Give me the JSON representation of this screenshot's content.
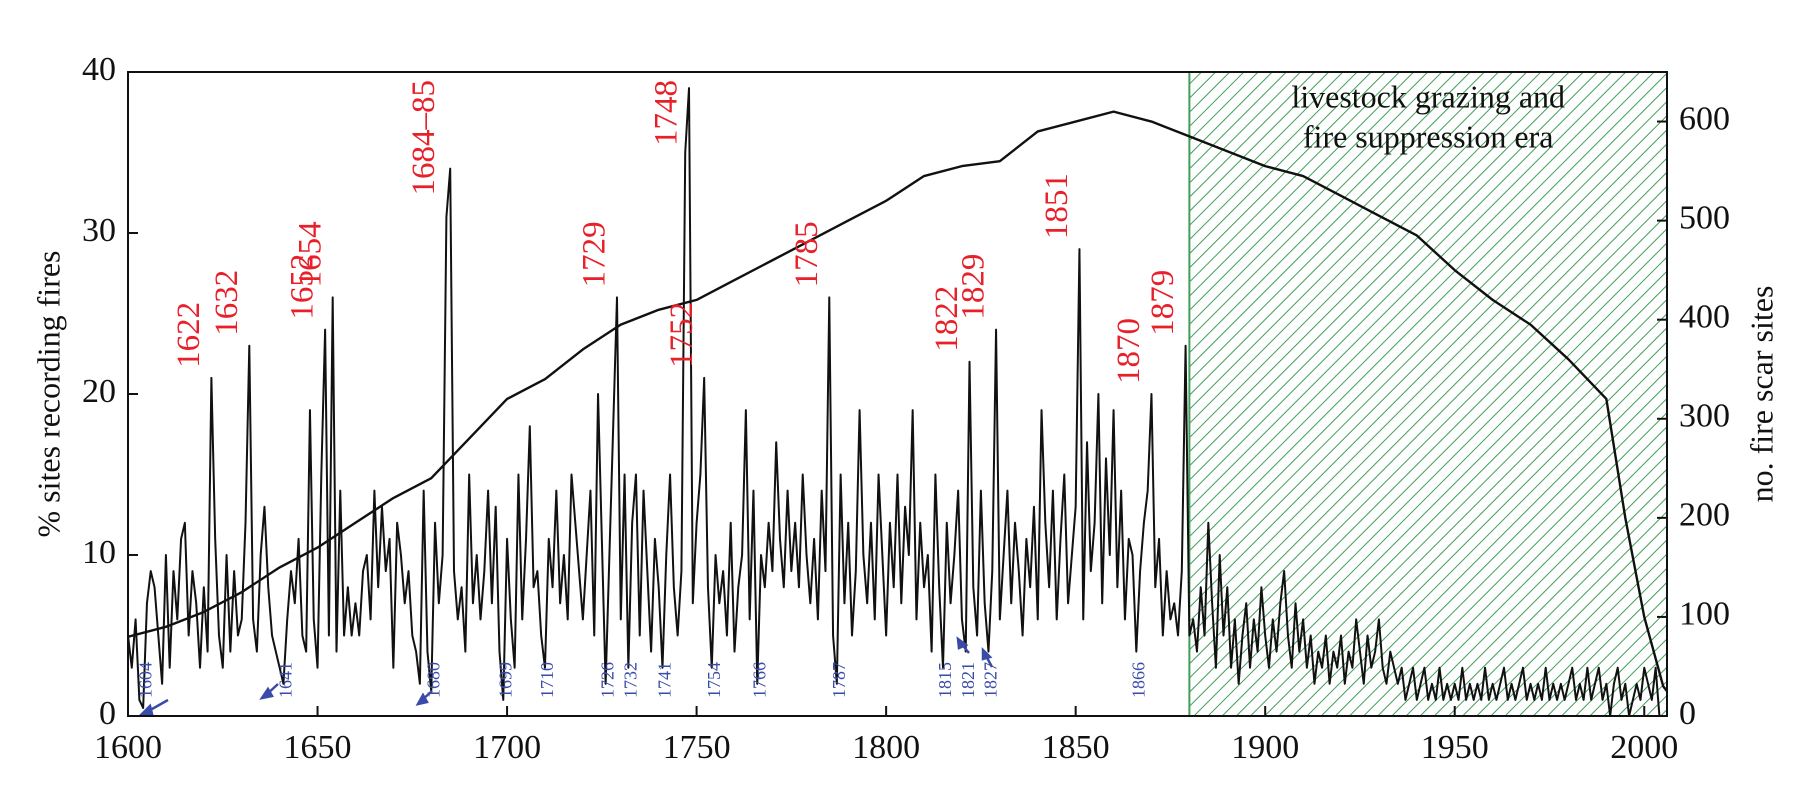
{
  "chart_data": {
    "type": "line",
    "y_label": "% sites recording fires",
    "y2_label": "no. fire scar sites",
    "xlim": [
      1600,
      2006
    ],
    "xticks": [
      1600,
      1650,
      1700,
      1750,
      1800,
      1850,
      1900,
      1950,
      2000
    ],
    "ylim": [
      0,
      40
    ],
    "yticks": [
      0,
      10,
      20,
      30,
      40
    ],
    "y2lim": [
      0,
      650
    ],
    "y2ticks": [
      0,
      100,
      200,
      300,
      400,
      500,
      600
    ],
    "shaded_region": {
      "start": 1880,
      "label_lines": [
        "livestock grazing and",
        "fire suppression era"
      ],
      "color": "#3f9f5a"
    },
    "fire_year_labels": [
      "1622",
      "1632",
      "1652",
      "1654",
      "1684–85",
      "1729",
      "1748",
      "1752",
      "1785",
      "1822",
      "1829",
      "1851",
      "1870",
      "1879"
    ],
    "minor_year_labels": [
      "1604",
      "1641",
      "1680",
      "1699",
      "1710",
      "1726",
      "1732",
      "1741",
      "1754",
      "1766",
      "1787",
      "1815",
      "1821",
      "1827",
      "1866"
    ],
    "series": [
      {
        "name": "% sites recording fires",
        "color": "#111111",
        "x": [
          1600,
          1601,
          1602,
          1603,
          1604,
          1605,
          1606,
          1607,
          1608,
          1609,
          1610,
          1611,
          1612,
          1613,
          1614,
          1615,
          1616,
          1617,
          1618,
          1619,
          1620,
          1621,
          1622,
          1623,
          1624,
          1625,
          1626,
          1627,
          1628,
          1629,
          1630,
          1631,
          1632,
          1633,
          1634,
          1635,
          1636,
          1637,
          1638,
          1639,
          1640,
          1641,
          1642,
          1643,
          1644,
          1645,
          1646,
          1647,
          1648,
          1649,
          1650,
          1651,
          1652,
          1653,
          1654,
          1655,
          1656,
          1657,
          1658,
          1659,
          1660,
          1661,
          1662,
          1663,
          1664,
          1665,
          1666,
          1667,
          1668,
          1669,
          1670,
          1671,
          1672,
          1673,
          1674,
          1675,
          1676,
          1677,
          1678,
          1679,
          1680,
          1681,
          1682,
          1683,
          1684,
          1685,
          1686,
          1687,
          1688,
          1689,
          1690,
          1691,
          1692,
          1693,
          1694,
          1695,
          1696,
          1697,
          1698,
          1699,
          1700,
          1701,
          1702,
          1703,
          1704,
          1705,
          1706,
          1707,
          1708,
          1709,
          1710,
          1711,
          1712,
          1713,
          1714,
          1715,
          1716,
          1717,
          1718,
          1719,
          1720,
          1721,
          1722,
          1723,
          1724,
          1725,
          1726,
          1727,
          1728,
          1729,
          1730,
          1731,
          1732,
          1733,
          1734,
          1735,
          1736,
          1737,
          1738,
          1739,
          1740,
          1741,
          1742,
          1743,
          1744,
          1745,
          1746,
          1747,
          1748,
          1749,
          1750,
          1751,
          1752,
          1753,
          1754,
          1755,
          1756,
          1757,
          1758,
          1759,
          1760,
          1761,
          1762,
          1763,
          1764,
          1765,
          1766,
          1767,
          1768,
          1769,
          1770,
          1771,
          1772,
          1773,
          1774,
          1775,
          1776,
          1777,
          1778,
          1779,
          1780,
          1781,
          1782,
          1783,
          1784,
          1785,
          1786,
          1787,
          1788,
          1789,
          1790,
          1791,
          1792,
          1793,
          1794,
          1795,
          1796,
          1797,
          1798,
          1799,
          1800,
          1801,
          1802,
          1803,
          1804,
          1805,
          1806,
          1807,
          1808,
          1809,
          1810,
          1811,
          1812,
          1813,
          1814,
          1815,
          1816,
          1817,
          1818,
          1819,
          1820,
          1821,
          1822,
          1823,
          1824,
          1825,
          1826,
          1827,
          1828,
          1829,
          1830,
          1831,
          1832,
          1833,
          1834,
          1835,
          1836,
          1837,
          1838,
          1839,
          1840,
          1841,
          1842,
          1843,
          1844,
          1845,
          1846,
          1847,
          1848,
          1849,
          1850,
          1851,
          1852,
          1853,
          1854,
          1855,
          1856,
          1857,
          1858,
          1859,
          1860,
          1861,
          1862,
          1863,
          1864,
          1865,
          1866,
          1867,
          1868,
          1869,
          1870,
          1871,
          1872,
          1873,
          1874,
          1875,
          1876,
          1877,
          1878,
          1879,
          1880,
          1881,
          1882,
          1883,
          1884,
          1885,
          1886,
          1887,
          1888,
          1889,
          1890,
          1891,
          1892,
          1893,
          1894,
          1895,
          1896,
          1897,
          1898,
          1899,
          1900,
          1901,
          1902,
          1903,
          1904,
          1905,
          1906,
          1907,
          1908,
          1909,
          1910,
          1911,
          1912,
          1913,
          1914,
          1915,
          1916,
          1917,
          1918,
          1919,
          1920,
          1921,
          1922,
          1923,
          1924,
          1925,
          1926,
          1927,
          1928,
          1929,
          1930,
          1931,
          1932,
          1933,
          1934,
          1935,
          1936,
          1937,
          1938,
          1939,
          1940,
          1941,
          1942,
          1943,
          1944,
          1945,
          1946,
          1947,
          1948,
          1949,
          1950,
          1951,
          1952,
          1953,
          1954,
          1955,
          1956,
          1957,
          1958,
          1959,
          1960,
          1961,
          1962,
          1963,
          1964,
          1965,
          1966,
          1967,
          1968,
          1969,
          1970,
          1971,
          1972,
          1973,
          1974,
          1975,
          1976,
          1977,
          1978,
          1979,
          1980,
          1981,
          1982,
          1983,
          1984,
          1985,
          1986,
          1987,
          1988,
          1989,
          1990,
          1991,
          1992,
          1993,
          1994,
          1995,
          1996,
          1997,
          1998,
          1999,
          2000,
          2001,
          2002,
          2003,
          2004
        ],
        "values": [
          5,
          3,
          6,
          1,
          0.5,
          7,
          9,
          8,
          5,
          2,
          10,
          3,
          9,
          6,
          11,
          12,
          5,
          9,
          7,
          3,
          8,
          4,
          21,
          11,
          5,
          3,
          10,
          4,
          9,
          5,
          6,
          12,
          23,
          6,
          4,
          10,
          13,
          8,
          5,
          4,
          3,
          2,
          6,
          9,
          7,
          11,
          5,
          4,
          19,
          6,
          3,
          15,
          24,
          5,
          26,
          4,
          14,
          5,
          8,
          5,
          7,
          5,
          9,
          10,
          6,
          14,
          8,
          13,
          9,
          11,
          3,
          12,
          10,
          7,
          9,
          5,
          4,
          2,
          14,
          4,
          1.5,
          12,
          7,
          10,
          31,
          34,
          9,
          6,
          8,
          4,
          15,
          7,
          10,
          6,
          9,
          14,
          7,
          13,
          4,
          1,
          11,
          6,
          3,
          15,
          6,
          11,
          18,
          8,
          9,
          5,
          3,
          11,
          8,
          14,
          7,
          10,
          6,
          15,
          12,
          9,
          6,
          10,
          14,
          5,
          20,
          11,
          2,
          10,
          18,
          26,
          6,
          15,
          3,
          12,
          15,
          5,
          14,
          9,
          4,
          11,
          8,
          3,
          10,
          15,
          8,
          5,
          9,
          35,
          39,
          7,
          12,
          15,
          21,
          8,
          3,
          10,
          7,
          9,
          5,
          12,
          4,
          8,
          10,
          19,
          6,
          14,
          2,
          10,
          8,
          12,
          9,
          17,
          11,
          8,
          14,
          9,
          12,
          8,
          15,
          10,
          7,
          11,
          6,
          14,
          9,
          26,
          5,
          2,
          15,
          7,
          12,
          5,
          9,
          19,
          10,
          7,
          12,
          6,
          15,
          10,
          5,
          12,
          8,
          15,
          7,
          13,
          10,
          19,
          6,
          12,
          8,
          10,
          4,
          15,
          8,
          3,
          12,
          7,
          10,
          14,
          6,
          4,
          22,
          8,
          5,
          14,
          7,
          4,
          9,
          24,
          6,
          10,
          14,
          7,
          12,
          9,
          5,
          11,
          8,
          13,
          6,
          19,
          12,
          8,
          14,
          6,
          11,
          15,
          7,
          10,
          13,
          29,
          6,
          17,
          9,
          12,
          20,
          7,
          16,
          10,
          19,
          8,
          14,
          6,
          11,
          10,
          4,
          9,
          12,
          14,
          20,
          8,
          11,
          5,
          9,
          6,
          7,
          5,
          9,
          23,
          5,
          6,
          4,
          8,
          5,
          12,
          7,
          3,
          10,
          5,
          8,
          3,
          6,
          2,
          5,
          7,
          3,
          6,
          4,
          8,
          5,
          3,
          6,
          4,
          7,
          9,
          5,
          3,
          7,
          4,
          6,
          3,
          5,
          2,
          4,
          3,
          5,
          2,
          4,
          3,
          5,
          2,
          4,
          3,
          6,
          4,
          2,
          5,
          3,
          4,
          6,
          3,
          2,
          4,
          3,
          2,
          3,
          1,
          2,
          3,
          1,
          2,
          3,
          1,
          2,
          1,
          3,
          1,
          2,
          1,
          2,
          1,
          3,
          1,
          2,
          1,
          2,
          1,
          3,
          1,
          2,
          1,
          2,
          3,
          1,
          2,
          1,
          2,
          3,
          1,
          2,
          1,
          2,
          1,
          3,
          1,
          2,
          1,
          2,
          1,
          2,
          3,
          1,
          2,
          1,
          3,
          1,
          2,
          3,
          1,
          2,
          0,
          2,
          3,
          1,
          2,
          0,
          1,
          2,
          1,
          3,
          2,
          1,
          3,
          0
        ]
      },
      {
        "name": "no. fire scar sites",
        "color": "#111111",
        "axis": "y2",
        "x": [
          1600,
          1610,
          1620,
          1630,
          1640,
          1650,
          1660,
          1670,
          1680,
          1690,
          1700,
          1710,
          1720,
          1730,
          1740,
          1750,
          1760,
          1770,
          1780,
          1790,
          1800,
          1810,
          1820,
          1830,
          1840,
          1850,
          1860,
          1870,
          1880,
          1890,
          1900,
          1910,
          1920,
          1930,
          1940,
          1950,
          1960,
          1970,
          1980,
          1990,
          1995,
          2000,
          2005,
          2006
        ],
        "values": [
          80,
          90,
          105,
          125,
          150,
          170,
          195,
          220,
          240,
          280,
          320,
          340,
          370,
          395,
          410,
          420,
          440,
          460,
          480,
          500,
          520,
          545,
          555,
          560,
          590,
          600,
          610,
          600,
          585,
          570,
          555,
          545,
          525,
          505,
          485,
          450,
          420,
          395,
          360,
          320,
          200,
          100,
          30,
          25
        ]
      }
    ]
  }
}
